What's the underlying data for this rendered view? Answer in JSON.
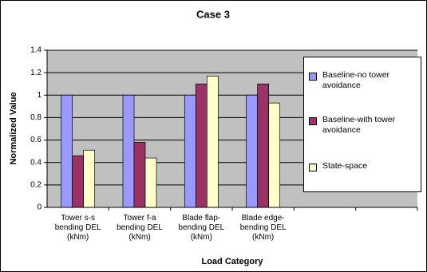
{
  "chart_data": {
    "type": "bar",
    "title": "Case 3",
    "x_label": "Load Category",
    "y_label": "Normalized Value",
    "categories": [
      "Tower s-s bending DEL (kNm)",
      "Tower f-a bending DEL (kNm)",
      "Blade flap-bending DEL (kNm)",
      "Blade edge-bending DEL (kNm)",
      null,
      null
    ],
    "series": [
      {
        "name": "Baseline-no tower avoidance",
        "color": "#9999ff",
        "values": [
          1,
          1,
          1,
          1,
          null,
          null
        ]
      },
      {
        "name": "Baseline-with tower avoidance",
        "color": "#993366",
        "values": [
          0.46,
          0.58,
          1.1,
          1.1,
          null,
          null
        ]
      },
      {
        "name": "State-space",
        "color": "#ffffcc",
        "values": [
          0.51,
          0.44,
          1.17,
          0.93,
          null,
          null
        ]
      }
    ],
    "ylim": [
      0,
      1.4
    ],
    "yticks": [
      0,
      0.2,
      0.4,
      0.6,
      0.8,
      1,
      1.2,
      1.4
    ],
    "grid": true,
    "legend": "right",
    "plot_background": "#c0c0c0"
  }
}
